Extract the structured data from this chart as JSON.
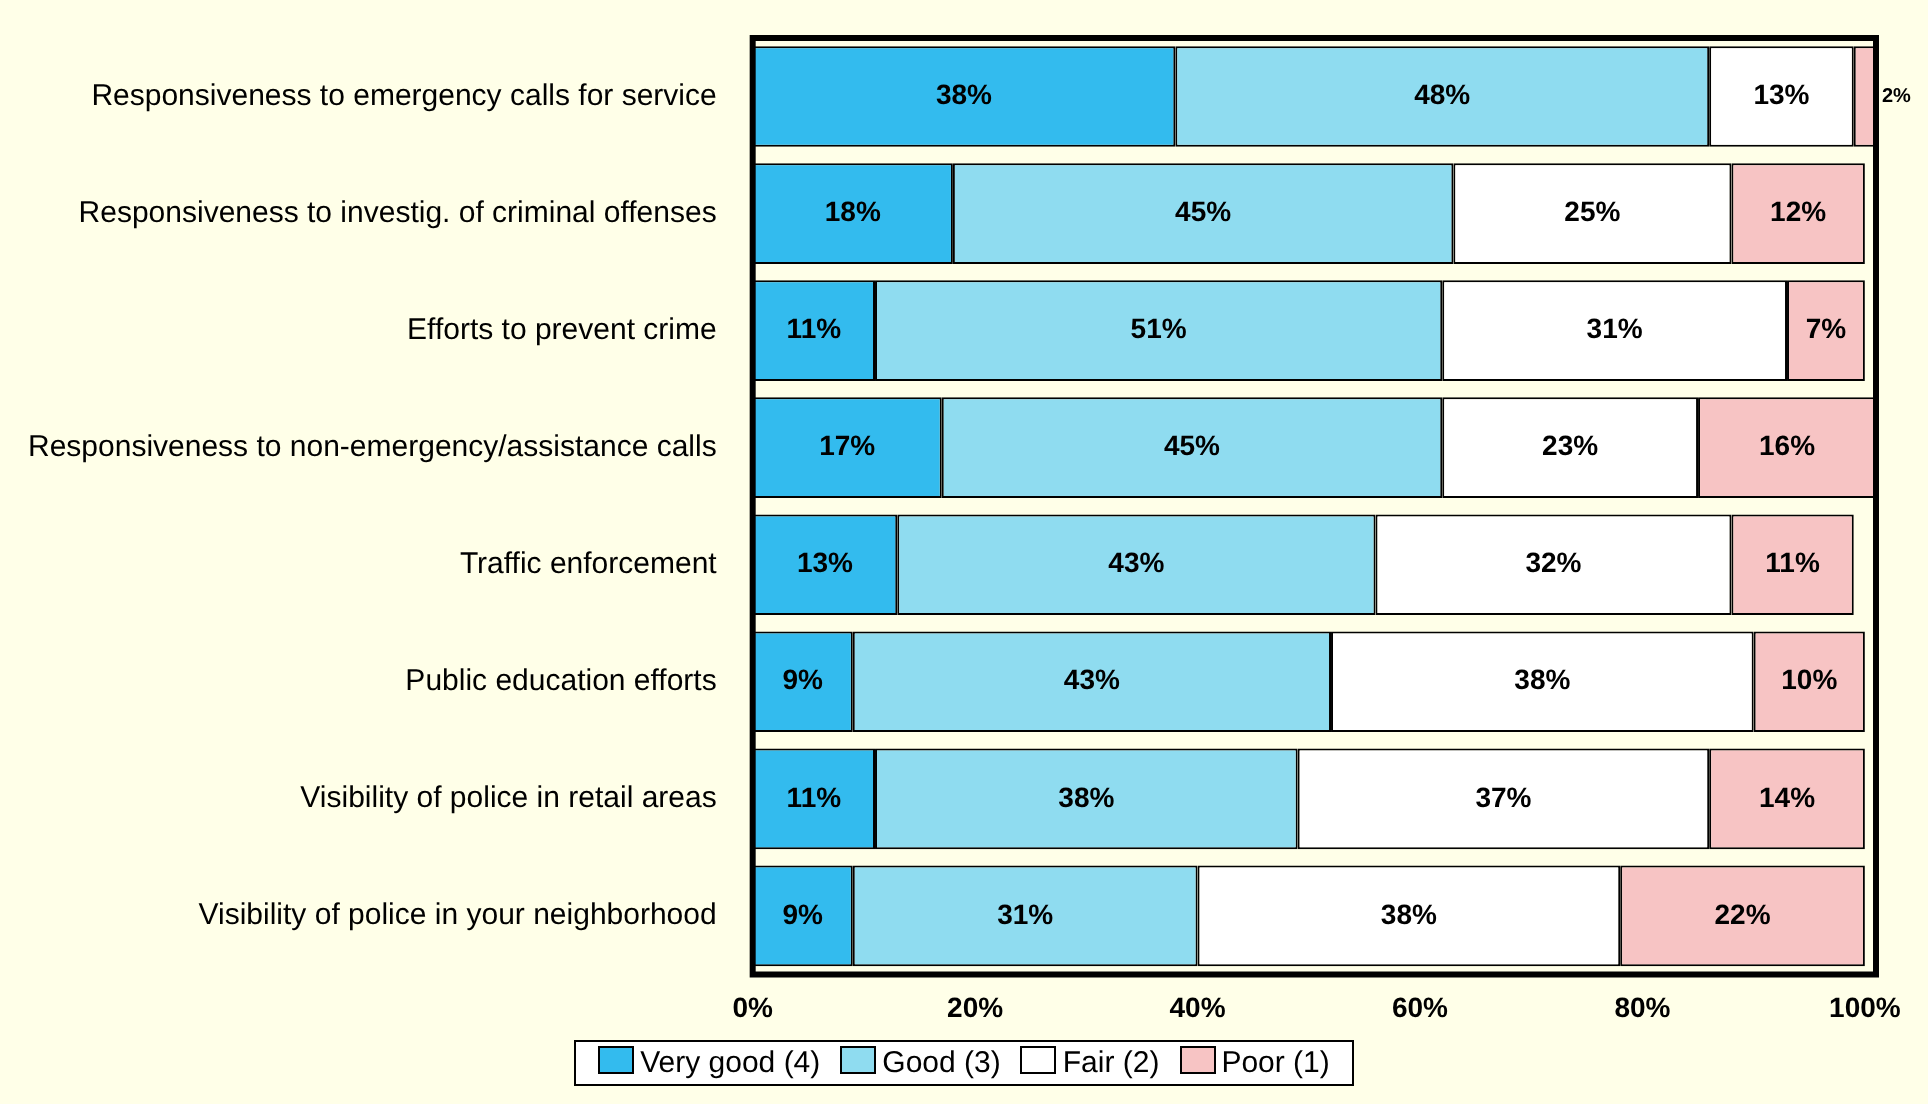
{
  "chart_data": {
    "type": "bar",
    "orientation": "horizontal",
    "stacked": true,
    "categories": [
      "Responsiveness to emergency calls for service",
      "Responsiveness to investig. of criminal offenses",
      "Efforts to prevent crime",
      "Responsiveness to non-emergency/assistance calls",
      "Traffic enforcement",
      "Public education efforts",
      "Visibility of police in retail areas",
      "Visibility of police in your neighborhood"
    ],
    "series": [
      {
        "name": "Very good (4)",
        "color": "#33bbee",
        "values": [
          38,
          18,
          11,
          17,
          13,
          9,
          11,
          9
        ],
        "value_labels": [
          "38%",
          "18%",
          "11%",
          "17%",
          "13%",
          "9%",
          "11%",
          "9%"
        ]
      },
      {
        "name": "Good (3)",
        "color": "#8fdcf0",
        "values": [
          48,
          45,
          51,
          45,
          43,
          43,
          38,
          31
        ],
        "value_labels": [
          "48%",
          "45%",
          "51%",
          "45%",
          "43%",
          "43%",
          "38%",
          "31%"
        ]
      },
      {
        "name": "Fair (2)",
        "color": "#ffffff",
        "values": [
          13,
          25,
          31,
          23,
          32,
          38,
          37,
          38
        ],
        "value_labels": [
          "13%",
          "25%",
          "31%",
          "23%",
          "32%",
          "38%",
          "37%",
          "38%"
        ]
      },
      {
        "name": "Poor (1)",
        "color": "#f7c4c4",
        "values": [
          2,
          12,
          7,
          16,
          11,
          10,
          14,
          22
        ],
        "value_labels": [
          "2%",
          "12%",
          "7%",
          "16%",
          "11%",
          "10%",
          "14%",
          "22%"
        ]
      }
    ],
    "xlim": [
      0,
      101
    ],
    "xticks": [
      {
        "value": 0,
        "label": "0%"
      },
      {
        "value": 20,
        "label": "20%"
      },
      {
        "value": 40,
        "label": "40%"
      },
      {
        "value": 60,
        "label": "60%"
      },
      {
        "value": 80,
        "label": "80%"
      },
      {
        "value": 100,
        "label": "100%"
      }
    ],
    "grid": false,
    "legend": "bottom"
  }
}
